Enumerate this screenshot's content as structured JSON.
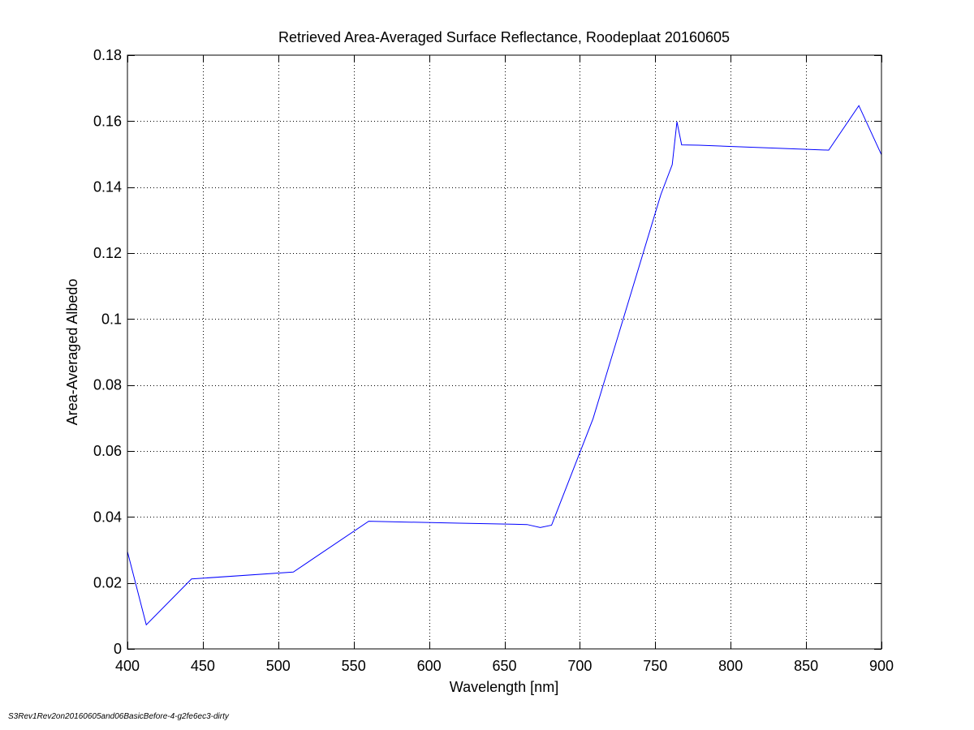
{
  "chart_data": {
    "type": "line",
    "title": "Retrieved Area-Averaged Surface Reflectance, Roodeplaat 20160605",
    "xlabel": "Wavelength [nm]",
    "ylabel": "Area-Averaged Albedo",
    "xlim": [
      400,
      900
    ],
    "ylim": [
      0,
      0.18
    ],
    "xticks": [
      400,
      450,
      500,
      550,
      600,
      650,
      700,
      750,
      800,
      850,
      900
    ],
    "xtick_labels": [
      "400",
      "450",
      "500",
      "550",
      "600",
      "650",
      "700",
      "750",
      "800",
      "850",
      "900"
    ],
    "yticks": [
      0,
      0.02,
      0.04,
      0.06,
      0.08,
      0.1,
      0.12,
      0.14,
      0.16,
      0.18
    ],
    "ytick_labels": [
      "0",
      "0.02",
      "0.04",
      "0.06",
      "0.08",
      "0.1",
      "0.12",
      "0.14",
      "0.16",
      "0.18"
    ],
    "grid": true,
    "line_color": "#0000ff",
    "series": [
      {
        "x": [
          400,
          412.5,
          442.5,
          510,
          560,
          620,
          665,
          673.75,
          681.25,
          708.75,
          753.75,
          761.25,
          764.375,
          767.5,
          778.75,
          865,
          885,
          900
        ],
        "y": [
          0.0295,
          0.0073,
          0.0212,
          0.0233,
          0.0387,
          0.0381,
          0.0377,
          0.0368,
          0.0375,
          0.0698,
          0.1378,
          0.1468,
          0.1598,
          0.1528,
          0.1527,
          0.1512,
          0.1647,
          0.1498
        ]
      }
    ]
  },
  "footer": {
    "label": "S3Rev1Rev2on20160605and06BasicBefore-4-g2fe6ec3-dirty"
  }
}
